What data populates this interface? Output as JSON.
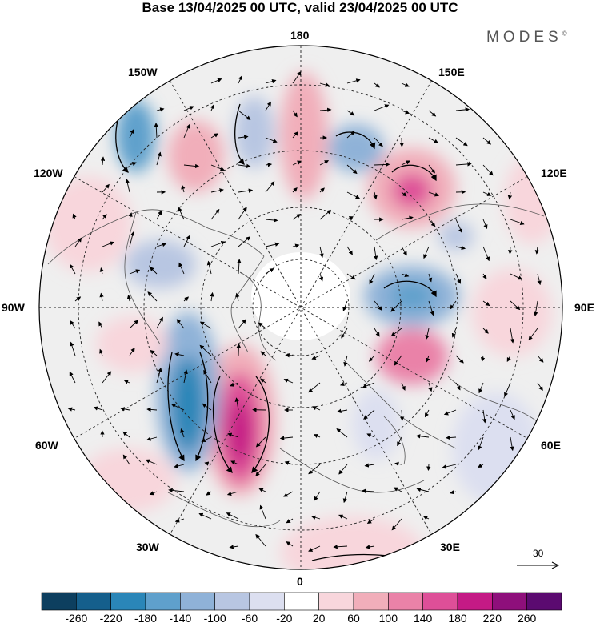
{
  "header": {
    "title": "Base 13/04/2025 00 UTC, valid 23/04/2025 00 UTC",
    "brand": "MODES",
    "brand_mark": "©"
  },
  "map": {
    "projection": "north-polar-stereographic",
    "longitude_labels": {
      "lon_180": "180",
      "lon_150w": "150W",
      "lon_150e": "150E",
      "lon_120w": "120W",
      "lon_120e": "120E",
      "lon_90w": "90W",
      "lon_90e": "90E",
      "lon_60w": "60W",
      "lon_60e": "60E",
      "lon_30w": "30W",
      "lon_30e": "30E",
      "lon_0": "0"
    },
    "anomaly_centers": [
      {
        "region": "North Atlantic (~40W)",
        "sign": "positive",
        "value": 260
      },
      {
        "region": "Labrador / W Atlantic (~55W)",
        "sign": "negative",
        "value": -180
      },
      {
        "region": "NW Pacific / Kamchatka",
        "sign": "positive",
        "value": 180
      },
      {
        "region": "Siberia (~90E)",
        "sign": "negative",
        "value": -140
      },
      {
        "region": "Central Siberia (~75E)",
        "sign": "positive",
        "value": 140
      },
      {
        "region": "Gulf of Alaska",
        "sign": "negative",
        "value": -140
      }
    ]
  },
  "wind_scale": {
    "label": "30",
    "units": "reference vector"
  },
  "colorbar": {
    "ticks": [
      "-260",
      "-220",
      "-180",
      "-140",
      "-100",
      "-60",
      "-20",
      "20",
      "60",
      "100",
      "140",
      "180",
      "220",
      "260"
    ],
    "colors": [
      "#0d3f5f",
      "#155f8c",
      "#2a86b8",
      "#5fa0cc",
      "#8fb2d8",
      "#b8c6e2",
      "#dcdff0",
      "#ffffff",
      "#f8d6dc",
      "#f1aeba",
      "#ea82a8",
      "#de4f98",
      "#c41a85",
      "#8e0f7b",
      "#5b0a70"
    ]
  }
}
